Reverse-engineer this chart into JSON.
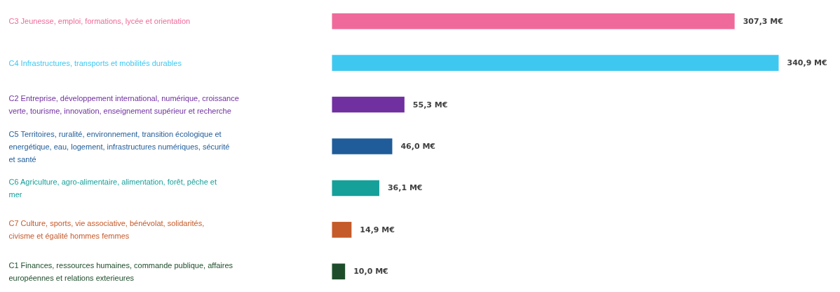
{
  "chart_data": {
    "type": "bar",
    "orientation": "horizontal",
    "categories": [
      "C3 Jeunesse, emploi, formations, lycée et orientation",
      "C4 Infrastructures, transports et mobilités durables",
      "C2 Entreprise, développement international, numérique, croissance verte, tourisme, innovation, enseignement supérieur et recherche",
      "C5 Territoires, ruralité, environnement, transition écologique et energétique, eau, logement, infrastructures numériques, sécurité et santé",
      "C6 Agriculture, agro-alimentaire, alimentation, forêt, pêche et mer",
      "C7 Culture, sports, vie associative, bénévolat, solidarités, civisme et égalité hommes femmes",
      "C1 Finances, ressources humaines, commande publique, affaires européennes et relations exterieures"
    ],
    "values": [
      307.3,
      340.9,
      55.3,
      46.0,
      36.1,
      14.9,
      10.0
    ],
    "colors": [
      "#ef6a9a",
      "#3ec8f0",
      "#7030a0",
      "#1f5c99",
      "#16a09a",
      "#c55a2a",
      "#1e4d2b"
    ],
    "value_labels": [
      "307,3 M€",
      "340,9 M€",
      "55,3 M€",
      "46,0 M€",
      "36,1 M€",
      "14,9 M€",
      "10,0 M€"
    ],
    "grid": false
  }
}
